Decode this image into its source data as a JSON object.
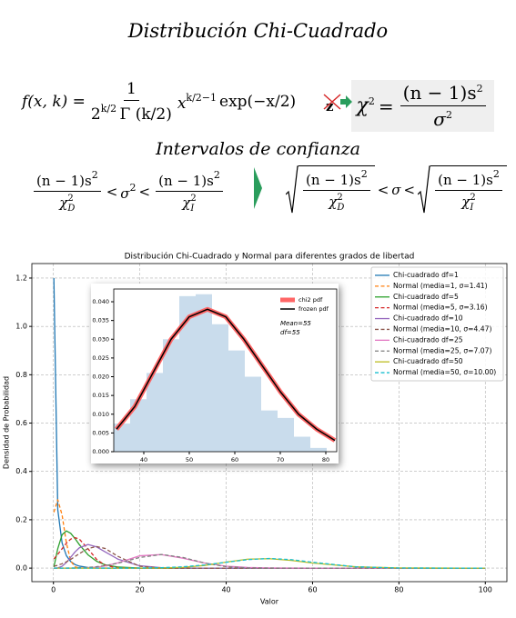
{
  "header": {
    "title": "Distribución Chi-Cuadrado",
    "subtitle": "Intervalos de confianza"
  },
  "formulas": {
    "density": {
      "lhs": "f(x, k) =",
      "numerator": "1",
      "den_base": "2",
      "den_exp": "k/2",
      "den_rest": "Γ (k/2)",
      "var": "x",
      "var_exp": "k/2−1",
      "tail": "exp(−x/2)"
    },
    "transform": {
      "from": "z",
      "chi": "χ",
      "chi_exp": "2",
      "eq": "=",
      "numerator": "(n − 1)s",
      "num_exp": "2",
      "denominator": "σ",
      "den_exp": "2"
    },
    "interval": {
      "num": "(n − 1)s",
      "num_exp": "2",
      "chi": "χ",
      "chi_exp": "2",
      "low_sub": "D",
      "high_sub": "I",
      "lt": "<",
      "sigma": "σ",
      "sigma_exp": "2"
    }
  },
  "chart_data": [
    {
      "type": "line",
      "title": "Distribución Chi-Cuadrado y Normal para diferentes grados de libertad",
      "xlabel": "Valor",
      "ylabel": "Densidad de Probabilidad",
      "x": [
        0.1,
        1,
        2,
        3,
        4,
        5,
        6,
        8,
        10,
        12,
        15,
        20,
        25,
        30,
        35,
        40,
        45,
        50,
        55,
        60,
        70,
        80,
        90,
        100
      ],
      "series": [
        {
          "name": "Chi-cuadrado df=1",
          "color": "#1f77b4",
          "dash": false,
          "values": [
            1.2,
            0.242,
            0.104,
            0.0514,
            0.027,
            0.0146,
            0.0081,
            0.0026,
            0.0008,
            0.0003,
            0,
            0,
            0,
            0,
            0,
            0,
            0,
            0,
            0,
            0,
            0,
            0,
            0,
            0
          ]
        },
        {
          "name": "Normal (media=1, σ=1.41)",
          "color": "#ff7f0e",
          "dash": true,
          "values": [
            0.231,
            0.283,
            0.22,
            0.104,
            0.03,
            0.005,
            0.0005,
            0,
            0,
            0,
            0,
            0,
            0,
            0,
            0,
            0,
            0,
            0,
            0,
            0,
            0,
            0,
            0,
            0
          ]
        },
        {
          "name": "Chi-cuadrado df=5",
          "color": "#2ca02c",
          "dash": false,
          "values": [
            0.004,
            0.0807,
            0.138,
            0.154,
            0.144,
            0.122,
            0.097,
            0.055,
            0.028,
            0.0137,
            0.0043,
            0.0005,
            0,
            0,
            0,
            0,
            0,
            0,
            0,
            0,
            0,
            0,
            0,
            0
          ]
        },
        {
          "name": "Normal (media=5, σ=3.16)",
          "color": "#d62728",
          "dash": true,
          "values": [
            0.038,
            0.057,
            0.08,
            0.103,
            0.12,
            0.126,
            0.12,
            0.08,
            0.036,
            0.011,
            0.0008,
            0,
            0,
            0,
            0,
            0,
            0,
            0,
            0,
            0,
            0,
            0,
            0,
            0
          ]
        },
        {
          "name": "Chi-cuadrado df=10",
          "color": "#9467bd",
          "dash": false,
          "values": [
            0,
            0.0008,
            0.0077,
            0.0235,
            0.0451,
            0.0668,
            0.084,
            0.0977,
            0.0877,
            0.067,
            0.0365,
            0.0095,
            0.0019,
            0.0003,
            0,
            0,
            0,
            0,
            0,
            0,
            0,
            0,
            0,
            0
          ]
        },
        {
          "name": "Normal (media=10, σ=4.47)",
          "color": "#8c564b",
          "dash": true,
          "values": [
            0.0077,
            0.0117,
            0.018,
            0.026,
            0.036,
            0.048,
            0.06,
            0.081,
            0.089,
            0.081,
            0.048,
            0.0073,
            0.0003,
            0,
            0,
            0,
            0,
            0,
            0,
            0,
            0,
            0,
            0,
            0
          ]
        },
        {
          "name": "Chi-cuadrado df=25",
          "color": "#e377c2",
          "dash": false,
          "values": [
            0,
            0,
            0,
            0,
            0,
            0,
            0.0004,
            0.0015,
            0.004,
            0.009,
            0.022,
            0.051,
            0.056,
            0.041,
            0.021,
            0.008,
            0.0027,
            0.0008,
            0.0002,
            0,
            0,
            0,
            0,
            0
          ]
        },
        {
          "name": "Normal (media=25, σ=7.07)",
          "color": "#7f7f7f",
          "dash": true,
          "values": [
            0.0001,
            0.0002,
            0.0003,
            0.0004,
            0.0007,
            0.001,
            0.0015,
            0.0031,
            0.0059,
            0.0104,
            0.0208,
            0.044,
            0.0564,
            0.044,
            0.0208,
            0.0059,
            0.001,
            0.0001,
            0,
            0,
            0,
            0,
            0,
            0
          ]
        },
        {
          "name": "Chi-cuadrado df=50",
          "color": "#bcbd22",
          "dash": false,
          "values": [
            0,
            0,
            0,
            0,
            0,
            0,
            0,
            0,
            0,
            0,
            0,
            0.0001,
            0.0006,
            0.0033,
            0.011,
            0.025,
            0.037,
            0.039,
            0.032,
            0.021,
            0.0053,
            0.0008,
            0.0001,
            0
          ]
        },
        {
          "name": "Normal (media=50, σ=10.00)",
          "color": "#17becf",
          "dash": true,
          "values": [
            0,
            0,
            0,
            0,
            0,
            0,
            0,
            0,
            0,
            0,
            0.0001,
            0.0004,
            0.0018,
            0.0054,
            0.013,
            0.0242,
            0.0352,
            0.0399,
            0.0352,
            0.0242,
            0.0054,
            0.0004,
            0,
            0
          ]
        }
      ],
      "xlim": [
        -5,
        105
      ],
      "ylim": [
        -0.056,
        1.26
      ],
      "xticks": [
        0,
        20,
        40,
        60,
        80,
        100
      ],
      "yticks": [
        {
          "value": 0,
          "label": "0.0"
        },
        0.2,
        0.4,
        0.6,
        0.8,
        {
          "value": 1,
          "label": "1.0"
        },
        1.2
      ],
      "grid": true,
      "legend": "upper right"
    },
    {
      "type": "histogram",
      "bins": [
        33.4,
        37,
        40.6,
        44.2,
        47.8,
        51.4,
        55,
        58.6,
        62.2,
        65.8,
        69.4,
        73,
        76.6,
        80.2
      ],
      "values": [
        0.0075,
        0.014,
        0.021,
        0.03,
        0.0415,
        0.042,
        0.034,
        0.027,
        0.02,
        0.011,
        0.009,
        0.004,
        0.001
      ],
      "color": "#c9dcec",
      "x": [
        34,
        38,
        42,
        46,
        50,
        54,
        58,
        62,
        66,
        70,
        74,
        78,
        82
      ],
      "series": [
        {
          "name": "chi2 pdf",
          "color": "#ff6666",
          "linewidth": 5,
          "values": [
            0.006,
            0.012,
            0.021,
            0.03,
            0.036,
            0.038,
            0.036,
            0.03,
            0.023,
            0.016,
            0.01,
            0.006,
            0.003
          ]
        },
        {
          "name": "frozen pdf",
          "color": "#000000",
          "linewidth": 1.5,
          "values": [
            0.006,
            0.012,
            0.021,
            0.03,
            0.036,
            0.038,
            0.036,
            0.03,
            0.023,
            0.016,
            0.01,
            0.006,
            0.003
          ]
        }
      ],
      "annotations": [
        "Mean=55",
        "df=55"
      ],
      "xlim": [
        33.4,
        82.4
      ],
      "ylim": [
        0,
        0.0434
      ],
      "xticks": [
        40,
        50,
        60,
        70,
        80
      ],
      "yticks": [
        {
          "value": 0,
          "label": "0.000"
        },
        0.005,
        {
          "value": 0.01,
          "label": "0.010"
        },
        0.015,
        {
          "value": 0.02,
          "label": "0.020"
        },
        0.025,
        {
          "value": 0.03,
          "label": "0.030"
        },
        0.035,
        {
          "value": 0.04,
          "label": "0.040"
        }
      ],
      "grid": false,
      "legend": "upper right"
    }
  ]
}
